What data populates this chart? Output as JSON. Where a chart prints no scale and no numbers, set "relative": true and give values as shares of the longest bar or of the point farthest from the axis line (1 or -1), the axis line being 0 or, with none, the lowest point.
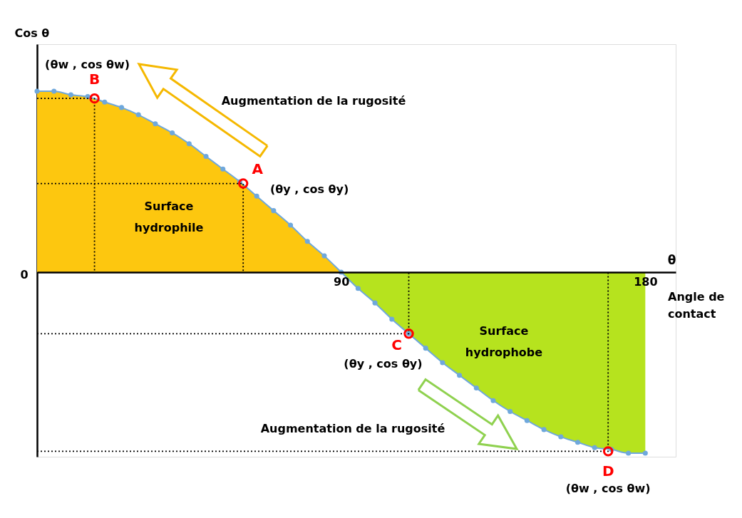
{
  "chart_data": {
    "type": "line",
    "ylabel": "Cos θ",
    "xlabel": "θ",
    "relative": true,
    "xlim": [
      0,
      189
    ],
    "xticks": [
      90,
      180
    ],
    "grid": false,
    "series": [
      {
        "type": "area",
        "color": "#fdc70f",
        "x": [
          0,
          5,
          10,
          15,
          20,
          25,
          30,
          35,
          40,
          45,
          50,
          55,
          60,
          65,
          70,
          75,
          80,
          85,
          90
        ],
        "values": [
          1.0,
          1.0,
          0.98,
          0.97,
          0.94,
          0.91,
          0.87,
          0.82,
          0.77,
          0.71,
          0.64,
          0.57,
          0.5,
          0.42,
          0.34,
          0.26,
          0.17,
          0.09,
          0.0
        ]
      },
      {
        "type": "area",
        "color": "#b6e31e",
        "x": [
          90,
          95,
          100,
          105,
          110,
          115,
          120,
          125,
          130,
          135,
          140,
          145,
          150,
          155,
          160,
          165,
          170,
          175,
          180
        ],
        "values": [
          0.0,
          -0.09,
          -0.17,
          -0.26,
          -0.34,
          -0.42,
          -0.5,
          -0.57,
          -0.64,
          -0.71,
          -0.77,
          -0.82,
          -0.87,
          -0.91,
          -0.94,
          -0.97,
          -0.98,
          -1.0,
          -1.0
        ]
      },
      {
        "color": "#6fa8dc",
        "marker": "circle",
        "x": [
          0,
          5,
          10,
          15,
          20,
          25,
          30,
          35,
          40,
          45,
          50,
          55,
          60,
          65,
          70,
          75,
          80,
          85,
          90,
          95,
          100,
          105,
          110,
          115,
          120,
          125,
          130,
          135,
          140,
          145,
          150,
          155,
          160,
          165,
          170,
          175,
          180
        ],
        "values": [
          1.0,
          1.0,
          0.98,
          0.97,
          0.94,
          0.91,
          0.87,
          0.82,
          0.77,
          0.71,
          0.64,
          0.57,
          0.5,
          0.42,
          0.34,
          0.26,
          0.17,
          0.09,
          0.0,
          -0.09,
          -0.17,
          -0.26,
          -0.34,
          -0.42,
          -0.5,
          -0.57,
          -0.64,
          -0.71,
          -0.77,
          -0.82,
          -0.87,
          -0.91,
          -0.94,
          -0.97,
          -0.98,
          -1.0,
          -1.0
        ]
      },
      {
        "type": "line",
        "color": "#000000",
        "line_style": "dotted",
        "x": [
          0,
          17,
          17
        ],
        "values": [
          0.96,
          0.96,
          0
        ]
      },
      {
        "type": "line",
        "color": "#000000",
        "line_style": "dotted",
        "x": [
          0,
          61,
          61
        ],
        "values": [
          0.49,
          0.49,
          0
        ]
      },
      {
        "type": "line",
        "color": "#000000",
        "line_style": "dotted",
        "x": [
          0,
          110,
          110
        ],
        "values": [
          -0.34,
          -0.34,
          0
        ]
      },
      {
        "type": "line",
        "color": "#000000",
        "line_style": "dotted",
        "x": [
          0,
          169,
          169
        ],
        "values": [
          -0.99,
          -0.99,
          0
        ]
      },
      {
        "type": "scatter",
        "color": "#ff0000",
        "marker": "circle",
        "x": [
          17,
          61,
          110,
          169
        ],
        "values": [
          0.96,
          0.49,
          -0.34,
          -0.99
        ]
      }
    ],
    "annotations": [
      {
        "text": "B",
        "x": 17,
        "y": 0.96
      },
      {
        "text": "(θw , cos θw)",
        "x": 17,
        "y": 0.96
      },
      {
        "text": "A",
        "x": 61,
        "y": 0.49
      },
      {
        "text": "(θy , cos θy)",
        "x": 61,
        "y": 0.49
      },
      {
        "text": "C",
        "x": 110,
        "y": -0.34
      },
      {
        "text": "(θy , cos θy)",
        "x": 110,
        "y": -0.34
      },
      {
        "text": "D",
        "x": 169,
        "y": -0.99
      },
      {
        "text": "(θw , cos θw)",
        "x": 169,
        "y": -0.99
      },
      "Surface hydrophile",
      "Surface hydrophobe",
      "Augmentation de la rugosité",
      "Augmentation de la rugosité",
      "Angle de contact",
      "0"
    ]
  }
}
